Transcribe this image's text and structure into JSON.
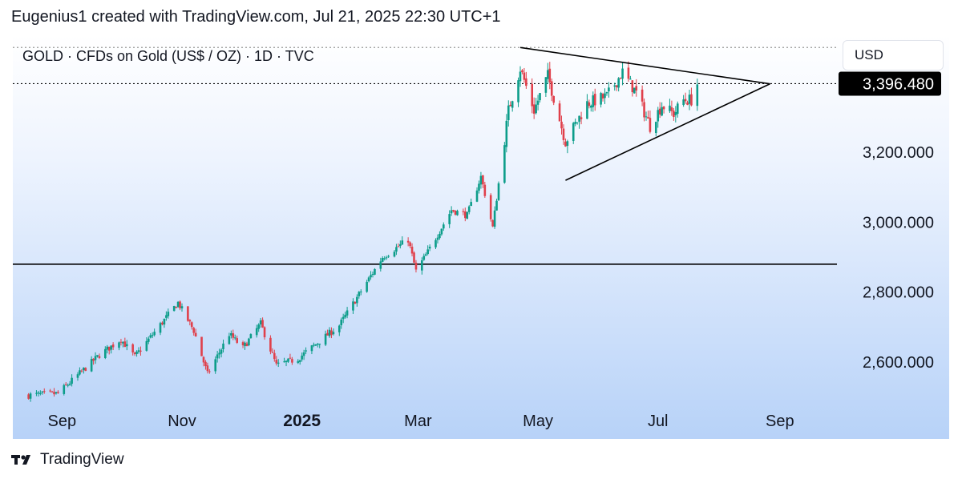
{
  "header": {
    "text": "Eugenius1 created with TradingView.com, Jul 21, 2025 22:30 UTC+1"
  },
  "symbol": {
    "text": "GOLD · CFDs on Gold (US$ / OZ) · 1D · TVC"
  },
  "currency": "USD",
  "footer": {
    "brand": "TradingView"
  },
  "colors": {
    "up": "#0c9d8a",
    "down": "#e0404b",
    "line": "#000000",
    "price_label_bg": "#000000"
  },
  "chart_data": {
    "type": "candlestick",
    "title": "GOLD · CFDs on Gold (US$ / OZ) · 1D · TVC",
    "timeframe": "1D",
    "y_axis": {
      "ticks": [
        2600,
        2800,
        3000,
        3200
      ],
      "tick_labels": [
        "2,600.000",
        "2,800.000",
        "3,000.000",
        "3,200.000"
      ],
      "range": [
        2490,
        3535
      ]
    },
    "x_axis": {
      "labels": [
        "Sep",
        "Nov",
        "2025",
        "Mar",
        "May",
        "Jul",
        "Sep"
      ],
      "label_dates": [
        "2024-09-01",
        "2024-11-01",
        "2025-01-01",
        "2025-03-01",
        "2025-05-01",
        "2025-07-01",
        "2025-09-01"
      ],
      "bold": [
        false,
        false,
        true,
        false,
        false,
        false,
        false
      ],
      "range": [
        "2024-08-07",
        "2025-09-30"
      ]
    },
    "last_price": {
      "value": 3396.48,
      "label": "3,396.480"
    },
    "horizontal_lines": [
      {
        "price": 3500,
        "style": "dotted",
        "color": "#999999"
      },
      {
        "price": 3396.48,
        "style": "dotted",
        "color": "#000000"
      },
      {
        "price": 2880,
        "style": "solid",
        "color": "#000000"
      }
    ],
    "trendlines": [
      {
        "from": {
          "date": "2025-04-22",
          "price": 3500
        },
        "to": {
          "date": "2025-08-27",
          "price": 3396
        }
      },
      {
        "from": {
          "date": "2025-05-15",
          "price": 3120
        },
        "to": {
          "date": "2025-08-27",
          "price": 3396
        }
      }
    ],
    "anchors": [
      {
        "date": "2024-08-15",
        "price": 2505
      },
      {
        "date": "2024-08-30",
        "price": 2510
      },
      {
        "date": "2024-09-20",
        "price": 2620
      },
      {
        "date": "2024-10-01",
        "price": 2665
      },
      {
        "date": "2024-10-08",
        "price": 2615
      },
      {
        "date": "2024-10-30",
        "price": 2770
      },
      {
        "date": "2024-11-07",
        "price": 2690
      },
      {
        "date": "2024-11-14",
        "price": 2565
      },
      {
        "date": "2024-11-25",
        "price": 2680
      },
      {
        "date": "2024-12-02",
        "price": 2640
      },
      {
        "date": "2024-12-11",
        "price": 2710
      },
      {
        "date": "2024-12-19",
        "price": 2590
      },
      {
        "date": "2024-12-30",
        "price": 2610
      },
      {
        "date": "2025-01-20",
        "price": 2705
      },
      {
        "date": "2025-02-11",
        "price": 2900
      },
      {
        "date": "2025-02-24",
        "price": 2950
      },
      {
        "date": "2025-02-28",
        "price": 2860
      },
      {
        "date": "2025-03-06",
        "price": 2915
      },
      {
        "date": "2025-03-18",
        "price": 3035
      },
      {
        "date": "2025-03-26",
        "price": 3020
      },
      {
        "date": "2025-04-02",
        "price": 3130
      },
      {
        "date": "2025-04-08",
        "price": 2985
      },
      {
        "date": "2025-04-16",
        "price": 3320
      },
      {
        "date": "2025-04-22",
        "price": 3440
      },
      {
        "date": "2025-04-29",
        "price": 3320
      },
      {
        "date": "2025-05-06",
        "price": 3420
      },
      {
        "date": "2025-05-15",
        "price": 3230
      },
      {
        "date": "2025-05-26",
        "price": 3340
      },
      {
        "date": "2025-06-05",
        "price": 3360
      },
      {
        "date": "2025-06-13",
        "price": 3430
      },
      {
        "date": "2025-06-20",
        "price": 3370
      },
      {
        "date": "2025-06-27",
        "price": 3275
      },
      {
        "date": "2025-07-03",
        "price": 3335
      },
      {
        "date": "2025-07-09",
        "price": 3310
      },
      {
        "date": "2025-07-14",
        "price": 3350
      },
      {
        "date": "2025-07-18",
        "price": 3350
      },
      {
        "date": "2025-07-21",
        "price": 3396
      }
    ]
  }
}
